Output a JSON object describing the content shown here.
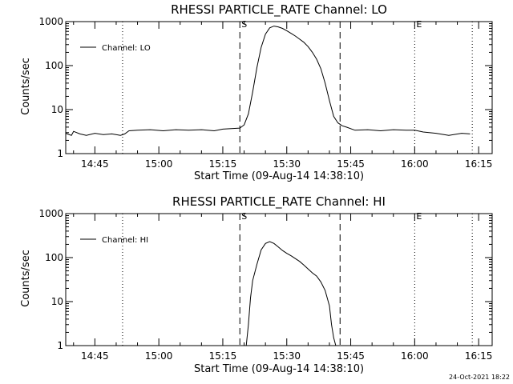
{
  "chart_data": [
    {
      "type": "line",
      "title": "RHESSI PARTICLE_RATE Channel: LO",
      "xlabel": "Start Time (09-Aug-14 14:38:10)",
      "ylabel": "Counts/sec",
      "yscale": "log",
      "ylim": [
        1,
        1000
      ],
      "xlim": [
        "14:38:10",
        "16:18:10"
      ],
      "x_ticks": [
        "14:45",
        "15:00",
        "15:15",
        "15:30",
        "15:45",
        "16:00",
        "16:15"
      ],
      "y_ticks": [
        "1",
        "10",
        "100",
        "1000"
      ],
      "legend": "top-left",
      "series": [
        {
          "name": "Channel: LO",
          "x": [
            "14:38:10",
            "14:39:30",
            "14:40:00",
            "14:41:30",
            "14:43:00",
            "14:45:00",
            "14:47:00",
            "14:49:00",
            "14:51:00",
            "14:52:00",
            "14:53:00",
            "14:55:00",
            "14:58:00",
            "15:01:00",
            "15:04:00",
            "15:07:00",
            "15:10:00",
            "15:13:00",
            "15:15:00",
            "15:17:00",
            "15:19:00",
            "15:20:00",
            "15:21:00",
            "15:22:00",
            "15:23:00",
            "15:24:00",
            "15:25:00",
            "15:26:00",
            "15:27:00",
            "15:28:00",
            "15:29:00",
            "15:30:00",
            "15:31:00",
            "15:32:00",
            "15:33:00",
            "15:34:00",
            "15:35:00",
            "15:36:00",
            "15:37:00",
            "15:38:00",
            "15:39:00",
            "15:40:00",
            "15:41:00",
            "15:42:00",
            "15:43:00",
            "15:44:00",
            "15:46:00",
            "15:49:00",
            "15:52:00",
            "15:55:00",
            "15:58:00",
            "16:00:00",
            "16:02:00",
            "16:05:00",
            "16:08:00",
            "16:11:00",
            "16:13:00"
          ],
          "y": [
            2.9,
            2.6,
            3.2,
            2.8,
            2.6,
            2.9,
            2.7,
            2.8,
            2.6,
            2.8,
            3.3,
            3.4,
            3.5,
            3.3,
            3.5,
            3.4,
            3.5,
            3.3,
            3.6,
            3.7,
            3.8,
            4.5,
            8,
            25,
            90,
            260,
            520,
            720,
            790,
            760,
            700,
            620,
            540,
            470,
            400,
            340,
            270,
            200,
            140,
            85,
            40,
            16,
            7,
            5,
            4.3,
            4.0,
            3.4,
            3.5,
            3.3,
            3.5,
            3.4,
            3.4,
            3.1,
            2.9,
            2.6,
            2.9,
            2.8
          ]
        }
      ],
      "annotations": [
        {
          "text": "S",
          "time": "15:19:00",
          "style": "dashed"
        },
        {
          "text": "",
          "time": "15:42:30",
          "style": "dashed"
        },
        {
          "text": "E",
          "time": "16:00:00",
          "style": "dotted"
        },
        {
          "text": "",
          "time": "14:51:30",
          "style": "dotted"
        },
        {
          "text": "",
          "time": "16:13:30",
          "style": "dotted"
        }
      ]
    },
    {
      "type": "line",
      "title": "RHESSI PARTICLE_RATE Channel: HI",
      "xlabel": "Start Time (09-Aug-14 14:38:10)",
      "ylabel": "Counts/sec",
      "yscale": "log",
      "ylim": [
        1,
        1000
      ],
      "xlim": [
        "14:38:10",
        "16:18:10"
      ],
      "x_ticks": [
        "14:45",
        "15:00",
        "15:15",
        "15:30",
        "15:45",
        "16:00",
        "16:15"
      ],
      "y_ticks": [
        "1",
        "10",
        "100",
        "1000"
      ],
      "legend": "top-left",
      "series": [
        {
          "name": "Channel: HI",
          "x": [
            "15:20:30",
            "15:21:00",
            "15:21:30",
            "15:22:00",
            "15:23:00",
            "15:24:00",
            "15:25:00",
            "15:26:00",
            "15:27:00",
            "15:28:00",
            "15:29:00",
            "15:30:00",
            "15:31:00",
            "15:32:00",
            "15:33:00",
            "15:34:00",
            "15:35:00",
            "15:36:00",
            "15:37:00",
            "15:38:00",
            "15:39:00",
            "15:40:00",
            "15:40:30",
            "15:41:00",
            "15:41:30"
          ],
          "y": [
            1,
            3,
            12,
            30,
            70,
            150,
            210,
            230,
            210,
            175,
            145,
            125,
            110,
            95,
            82,
            68,
            55,
            45,
            38,
            28,
            18,
            8,
            3,
            1.5,
            1
          ]
        }
      ],
      "annotations": [
        {
          "text": "S",
          "time": "15:19:00",
          "style": "dashed"
        },
        {
          "text": "",
          "time": "15:42:30",
          "style": "dashed"
        },
        {
          "text": "E",
          "time": "16:00:00",
          "style": "dotted"
        },
        {
          "text": "",
          "time": "14:51:30",
          "style": "dotted"
        },
        {
          "text": "",
          "time": "16:13:30",
          "style": "dotted"
        }
      ]
    }
  ],
  "footer": {
    "timestamp": "24-Oct-2021 18:22"
  }
}
